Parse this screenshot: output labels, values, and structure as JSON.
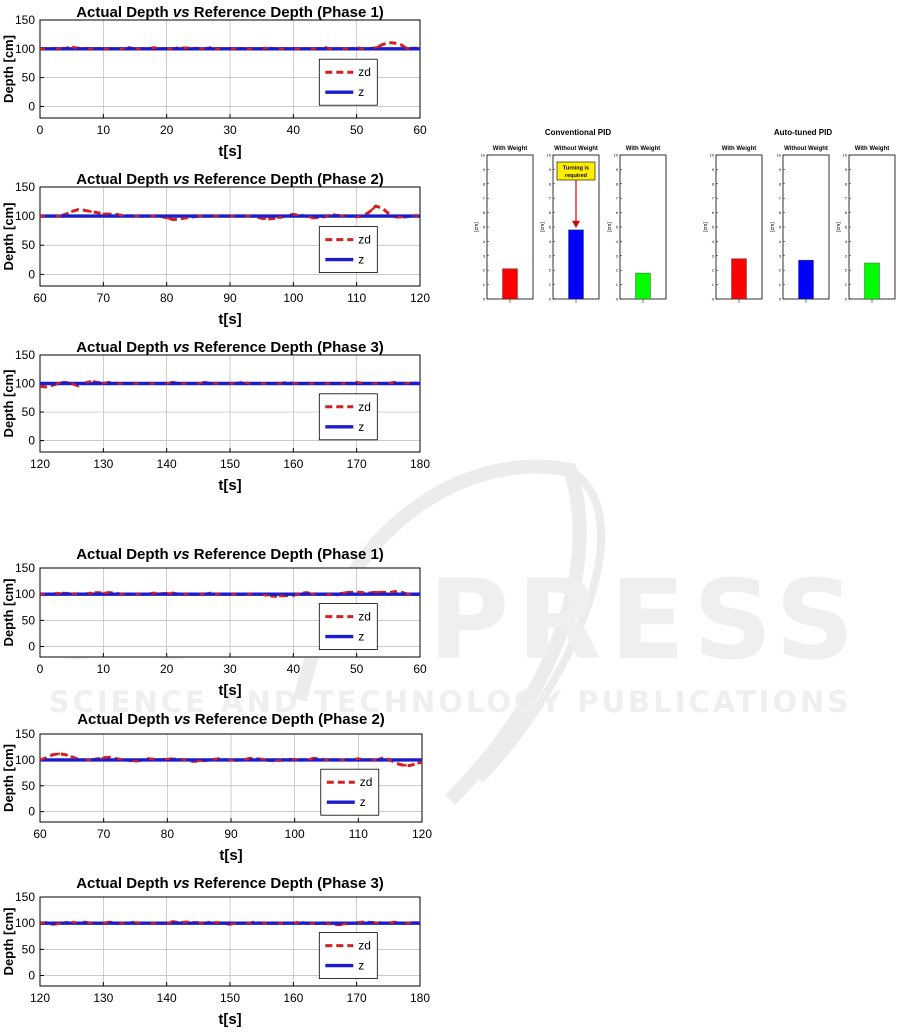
{
  "watermark": {
    "text": "SCITEPRESS",
    "subtext": "SCIENCE AND TECHNOLOGY PUBLICATIONS"
  },
  "colors": {
    "zd": "#d42020",
    "z": "#1c1ccc",
    "red": "#ff0000",
    "blue": "#0000ff",
    "green": "#00ff00",
    "callout_bg": "#ffee00"
  },
  "chart_data": [
    {
      "id": "c1",
      "type": "line",
      "title": "Actual Depth ",
      "title_em": "vs",
      "title_rest": " Reference Depth (Phase 1)",
      "xlabel": "t[s]",
      "ylabel": "Depth [cm]",
      "xlim": [
        0,
        60
      ],
      "ylim": [
        -20,
        150
      ],
      "xticks": [
        0,
        10,
        20,
        30,
        40,
        50,
        60
      ],
      "yticks": [
        0,
        50,
        100,
        150
      ],
      "grid": true,
      "legend": "center-right",
      "series": [
        {
          "name": "zd",
          "style": "dashed",
          "x": [
            0,
            2,
            4,
            5,
            6,
            8,
            10,
            13,
            14,
            15,
            17,
            18,
            19,
            21,
            22,
            26,
            27,
            28,
            35,
            36,
            37,
            44,
            45,
            46,
            49,
            50,
            51,
            52,
            53,
            54,
            55,
            56,
            57,
            58,
            59,
            60
          ],
          "y": [
            100,
            100,
            101,
            103,
            101,
            100,
            100,
            100,
            102,
            100,
            100,
            102,
            100,
            100,
            102,
            100,
            102,
            100,
            100,
            102,
            100,
            100,
            102,
            100,
            100,
            102,
            100,
            100,
            102,
            107,
            111,
            110,
            107,
            100,
            101,
            102
          ]
        },
        {
          "name": "z",
          "style": "solid",
          "x": [
            0,
            60
          ],
          "y": [
            100,
            100
          ]
        }
      ]
    },
    {
      "id": "c2",
      "type": "line",
      "title": "Actual Depth ",
      "title_em": "vs",
      "title_rest": " Reference Depth (Phase 2)",
      "xlabel": "t[s]",
      "ylabel": "Depth [cm]",
      "xlim": [
        60,
        120
      ],
      "ylim": [
        -20,
        150
      ],
      "xticks": [
        60,
        70,
        80,
        90,
        100,
        110,
        120
      ],
      "yticks": [
        0,
        50,
        100,
        150
      ],
      "grid": true,
      "legend": "center-right",
      "series": [
        {
          "name": "zd",
          "style": "dashed",
          "x": [
            60,
            63,
            64,
            65,
            66,
            67,
            68,
            69,
            70,
            72,
            73,
            75,
            76,
            79,
            80,
            81,
            82,
            83,
            85,
            86,
            94,
            95,
            96,
            97,
            98,
            99,
            100,
            102,
            103,
            105,
            106,
            107,
            109,
            110,
            111,
            112,
            113,
            114,
            115,
            116,
            117,
            118,
            119,
            120
          ],
          "y": [
            100,
            100,
            103,
            108,
            111,
            110,
            108,
            106,
            104,
            103,
            101,
            100,
            100,
            100,
            97,
            94,
            95,
            97,
            100,
            100,
            100,
            96,
            95,
            96,
            98,
            101,
            103,
            100,
            97,
            99,
            103,
            101,
            100,
            99,
            100,
            107,
            117,
            114,
            105,
            99,
            98,
            99,
            101,
            100
          ]
        },
        {
          "name": "z",
          "style": "solid",
          "x": [
            60,
            120
          ],
          "y": [
            100,
            100
          ]
        }
      ]
    },
    {
      "id": "c3",
      "type": "line",
      "title": "Actual Depth ",
      "title_em": "vs",
      "title_rest": " Reference Depth (Phase 3)",
      "xlabel": "t[s]",
      "ylabel": "Depth [cm]",
      "xlim": [
        120,
        180
      ],
      "ylim": [
        -20,
        150
      ],
      "xticks": [
        120,
        130,
        140,
        150,
        160,
        170,
        180
      ],
      "yticks": [
        0,
        50,
        100,
        150
      ],
      "grid": true,
      "legend": "center-right",
      "series": [
        {
          "name": "zd",
          "style": "dashed",
          "x": [
            120,
            121,
            122,
            123,
            124,
            125,
            126,
            127,
            128,
            130,
            131,
            132,
            140,
            141,
            142,
            145,
            146,
            147,
            151,
            152,
            153,
            158,
            159,
            160,
            169,
            170,
            171,
            175,
            176,
            177,
            180
          ],
          "y": [
            95,
            94,
            97,
            101,
            102,
            100,
            96,
            100,
            104,
            100,
            102,
            100,
            100,
            102,
            100,
            100,
            102,
            100,
            100,
            102,
            100,
            100,
            102,
            100,
            100,
            102,
            100,
            100,
            102,
            100,
            101
          ]
        },
        {
          "name": "z",
          "style": "solid",
          "x": [
            120,
            180
          ],
          "y": [
            100,
            100
          ]
        }
      ]
    },
    {
      "id": "c4",
      "type": "line",
      "title": "Actual Depth ",
      "title_em": "vs",
      "title_rest": " Reference Depth (Phase 1)",
      "xlabel": "t[s]",
      "ylabel": "Depth [cm]",
      "xlim": [
        0,
        60
      ],
      "ylim": [
        -20,
        150
      ],
      "xticks": [
        0,
        10,
        20,
        30,
        40,
        50,
        60
      ],
      "yticks": [
        0,
        50,
        100,
        150
      ],
      "grid": true,
      "legend": "center-right",
      "series": [
        {
          "name": "zd",
          "style": "dashed",
          "x": [
            0,
            2,
            3,
            7,
            8,
            9,
            10,
            11,
            13,
            17,
            18,
            19,
            21,
            22,
            26,
            27,
            28,
            35,
            36,
            37,
            40,
            41,
            42,
            43,
            44,
            47,
            48,
            50,
            52,
            53,
            55,
            56,
            57,
            58,
            60
          ],
          "y": [
            100,
            100,
            102,
            100,
            102,
            103,
            102,
            103,
            100,
            100,
            102,
            101,
            102,
            100,
            100,
            102,
            100,
            100,
            97,
            96,
            98,
            101,
            103,
            101,
            100,
            99,
            103,
            104,
            102,
            104,
            103,
            105,
            104,
            100,
            99
          ]
        },
        {
          "name": "z",
          "style": "solid",
          "x": [
            0,
            60
          ],
          "y": [
            100,
            100
          ]
        }
      ]
    },
    {
      "id": "c5",
      "type": "line",
      "title": "Actual Depth ",
      "title_em": "vs",
      "title_rest": " Reference Depth (Phase 2)",
      "xlabel": "t[s]",
      "ylabel": "Depth [cm]",
      "xlim": [
        60,
        120
      ],
      "ylim": [
        -20,
        150
      ],
      "xticks": [
        60,
        70,
        80,
        90,
        100,
        110,
        120
      ],
      "yticks": [
        0,
        50,
        100,
        150
      ],
      "grid": true,
      "legend": "center-right",
      "series": [
        {
          "name": "zd",
          "style": "dashed",
          "x": [
            60,
            61,
            62,
            63,
            64,
            65,
            66,
            67,
            68,
            69,
            70,
            71,
            72,
            74,
            75,
            76,
            77,
            79,
            80,
            83,
            84,
            85,
            87,
            88,
            90,
            92,
            93,
            95,
            96,
            97,
            99,
            102,
            103,
            105,
            109,
            110,
            111,
            113,
            114,
            115,
            116,
            117,
            118,
            119,
            120
          ],
          "y": [
            100,
            104,
            110,
            112,
            110,
            106,
            101,
            100,
            100,
            102,
            104,
            105,
            102,
            99,
            97,
            100,
            102,
            100,
            102,
            100,
            97,
            98,
            100,
            102,
            99,
            100,
            103,
            101,
            99,
            98,
            101,
            100,
            103,
            100,
            100,
            102,
            100,
            100,
            104,
            100,
            93,
            90,
            89,
            92,
            96
          ]
        },
        {
          "name": "z",
          "style": "solid",
          "x": [
            60,
            120
          ],
          "y": [
            100,
            100
          ]
        }
      ]
    },
    {
      "id": "c6",
      "type": "line",
      "title": "Actual Depth ",
      "title_em": "vs",
      "title_rest": " Reference Depth (Phase 3)",
      "xlabel": "t[s]",
      "ylabel": "Depth [cm]",
      "xlim": [
        120,
        180
      ],
      "ylim": [
        -20,
        150
      ],
      "xticks": [
        120,
        130,
        140,
        150,
        160,
        170,
        180
      ],
      "yticks": [
        0,
        50,
        100,
        150
      ],
      "grid": true,
      "legend": "center-right",
      "series": [
        {
          "name": "zd",
          "style": "dashed",
          "x": [
            120,
            121,
            122,
            123,
            124,
            125,
            126,
            127,
            128,
            130,
            131,
            132,
            134,
            135,
            136,
            140,
            141,
            142,
            143,
            146,
            147,
            149,
            150,
            151,
            153,
            154,
            155,
            160,
            161,
            162,
            166,
            167,
            168,
            169,
            170,
            171,
            175,
            176,
            177,
            179,
            180
          ],
          "y": [
            100,
            101,
            98,
            99,
            101,
            102,
            100,
            102,
            100,
            100,
            102,
            100,
            100,
            102,
            100,
            100,
            103,
            101,
            102,
            100,
            102,
            100,
            98,
            100,
            100,
            102,
            100,
            100,
            102,
            100,
            99,
            97,
            98,
            100,
            101,
            102,
            100,
            102,
            100,
            101,
            101
          ]
        },
        {
          "name": "z",
          "style": "solid",
          "x": [
            120,
            180
          ],
          "y": [
            100,
            100
          ]
        }
      ]
    },
    {
      "id": "b1",
      "type": "bar",
      "group_title": "Conventional PID",
      "ylabel": "[cm]",
      "ylim": [
        0,
        10
      ],
      "yticks": [
        0,
        1,
        2,
        3,
        4,
        5,
        6,
        7,
        8,
        9,
        10
      ],
      "panels": [
        {
          "title": "With Weight",
          "value": 2.1,
          "color": "red"
        },
        {
          "title": "Without Weight",
          "value": 4.8,
          "color": "blue",
          "callout": "Turning is required"
        },
        {
          "title": "With Weight",
          "value": 1.8,
          "color": "green"
        }
      ]
    },
    {
      "id": "b2",
      "type": "bar",
      "group_title": "Auto-tuned PID",
      "ylabel": "[cm]",
      "ylim": [
        0,
        10
      ],
      "yticks": [
        0,
        1,
        2,
        3,
        4,
        5,
        6,
        7,
        8,
        9,
        10
      ],
      "panels": [
        {
          "title": "With Weight",
          "value": 2.8,
          "color": "red"
        },
        {
          "title": "Without Weight",
          "value": 2.7,
          "color": "blue"
        },
        {
          "title": "With Weight",
          "value": 2.5,
          "color": "green"
        }
      ]
    }
  ]
}
